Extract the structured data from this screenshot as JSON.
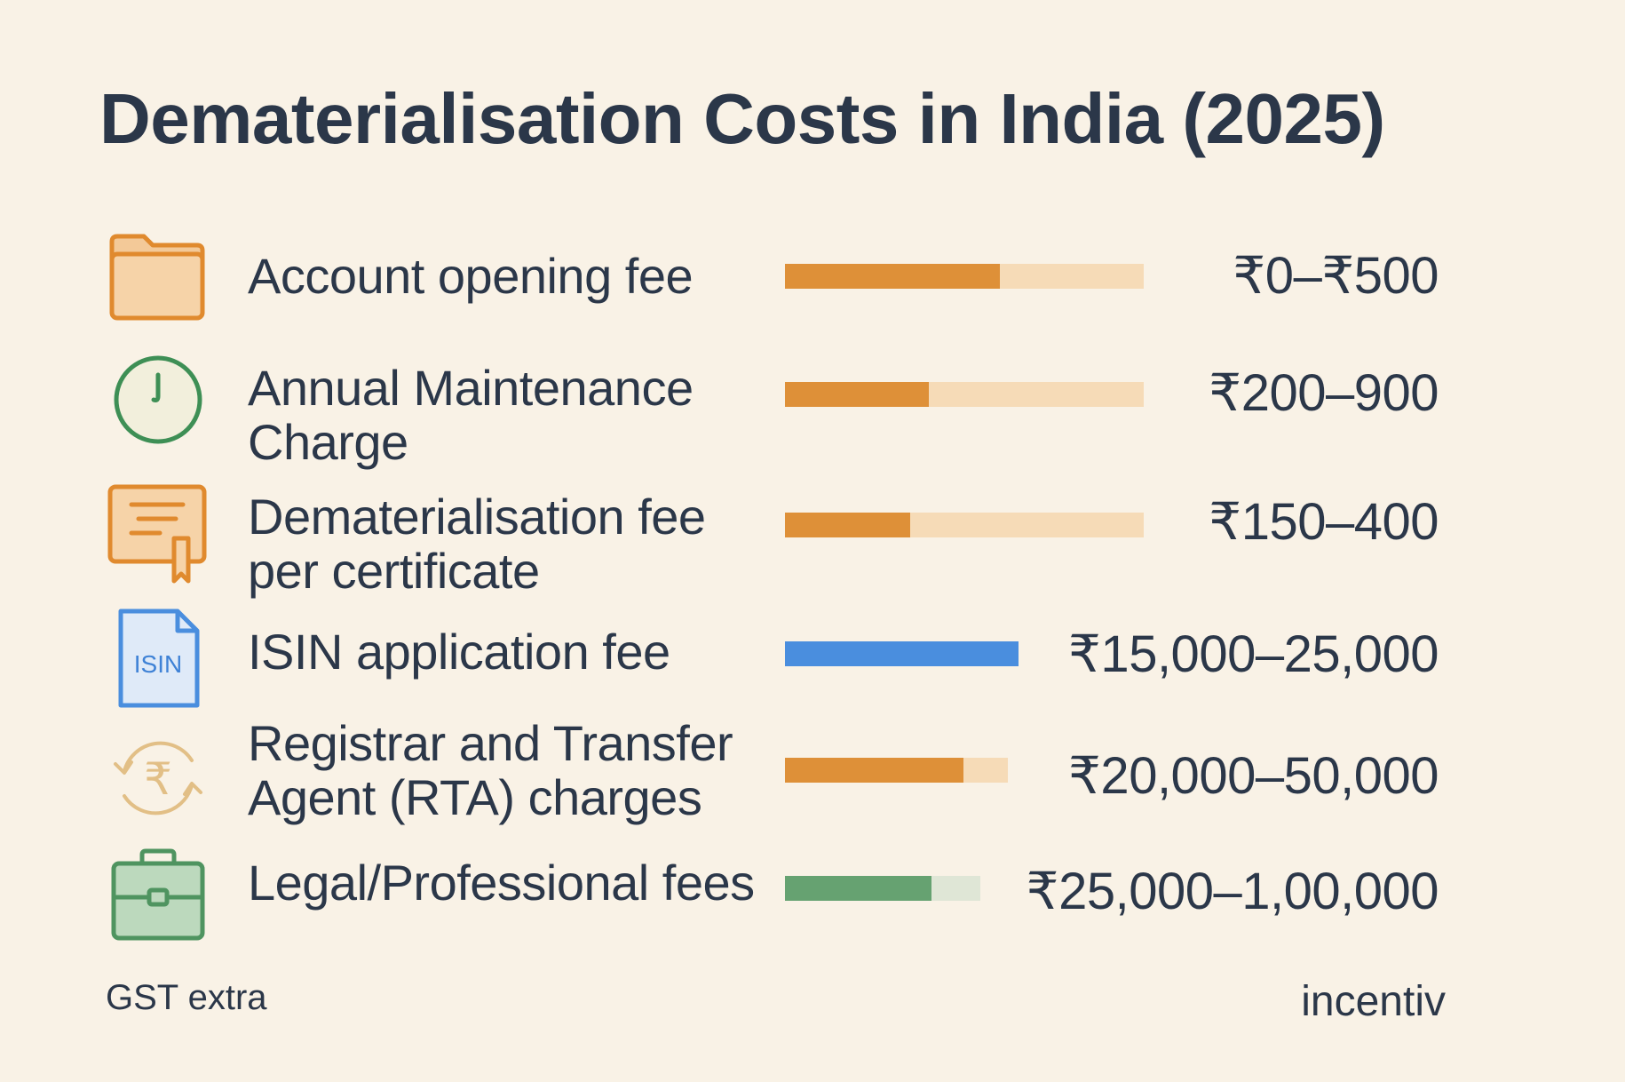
{
  "title": "Dematerialisation Costs in India (2025)",
  "rows": [
    {
      "label": "Account opening fee",
      "value": "₹0–₹500",
      "icon": "folder-icon",
      "bar": {
        "fill_color": "#de9038",
        "track_color": "#f6dbb7",
        "fill_fraction": 0.6
      }
    },
    {
      "label": "Annual Maintenance Charge",
      "value": "₹200–900",
      "icon": "clock-icon",
      "bar": {
        "fill_color": "#de9038",
        "track_color": "#f6dbb7",
        "fill_fraction": 0.4
      }
    },
    {
      "label": "Dematerialisation fee per certificate",
      "value": "₹150–400",
      "icon": "certificate-icon",
      "bar": {
        "fill_color": "#de9038",
        "track_color": "#f6dbb7",
        "fill_fraction": 0.35
      }
    },
    {
      "label": "ISIN application fee",
      "value": "₹15,000–25,000",
      "icon": "isin-document-icon",
      "icon_text": "ISIN",
      "bar": {
        "fill_color": "#4a8ede",
        "track_color": "#4a8ede",
        "fill_fraction": 1.0
      }
    },
    {
      "label": "Registrar and Transfer Agent (RTA) charges",
      "value": "₹20,000–50,000",
      "icon": "rupee-cycle-icon",
      "bar": {
        "fill_color": "#de9038",
        "track_color": "#f6dbb7",
        "fill_fraction": 0.8
      }
    },
    {
      "label": "Legal/Professional fees",
      "value": "₹25,000–1,00,000",
      "icon": "briefcase-icon",
      "bar": {
        "fill_color": "#66a271",
        "track_color": "#dfe6d6",
        "fill_fraction": 0.75
      }
    }
  ],
  "footnote": "GST extra",
  "brand": "incentiv"
}
